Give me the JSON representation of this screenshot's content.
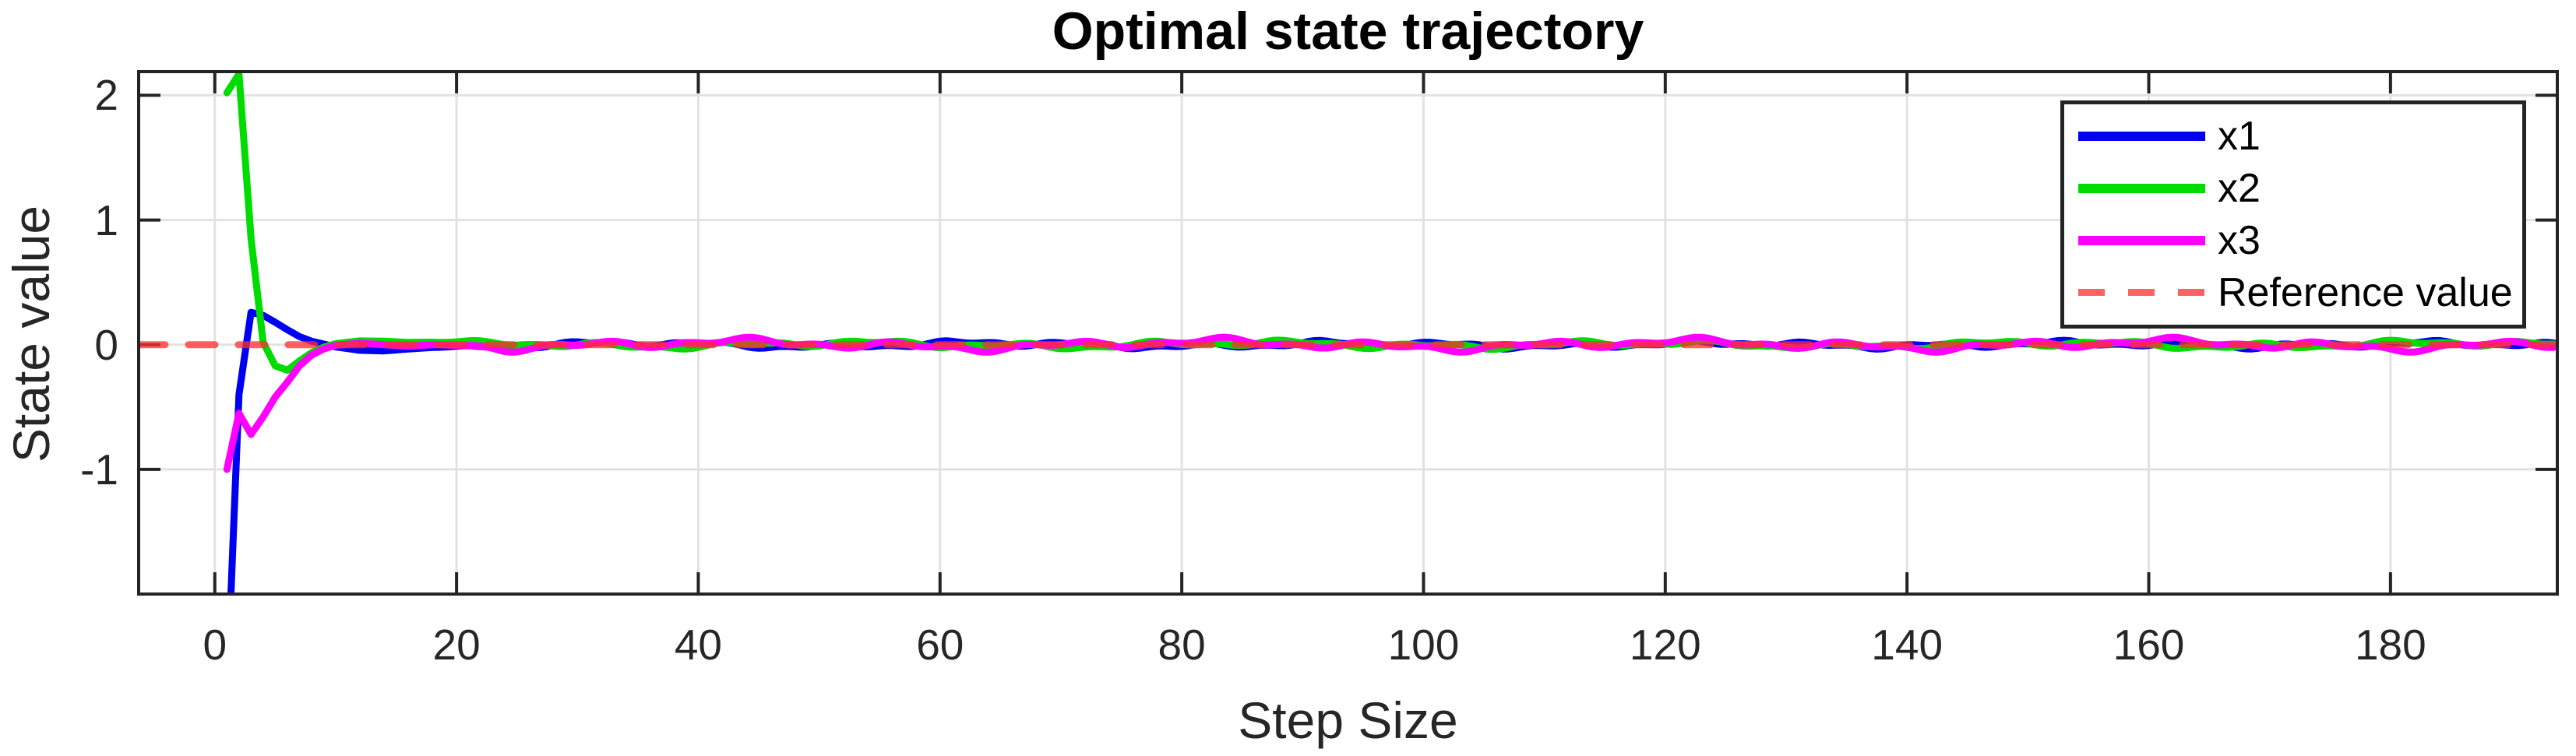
{
  "figure": {
    "background_color": "#ffffff"
  },
  "chart_data": {
    "type": "line",
    "title": "Optimal state trajectory",
    "xlabel": "Step Size",
    "ylabel": "State value",
    "xlim": [
      -6.3,
      193.8
    ],
    "ylim": [
      -2.0,
      2.19
    ],
    "x_ticks": [
      0,
      20,
      40,
      60,
      80,
      100,
      120,
      140,
      160,
      180
    ],
    "y_ticks": [
      -1,
      0,
      1,
      2
    ],
    "grid": true,
    "axis_color": "#242424",
    "grid_color": "#e2e2e2",
    "tick_label_color": "#262626",
    "legend_position": "top-right",
    "steady_state_range": [
      18,
      193.8
    ],
    "series": [
      {
        "name": "x1",
        "color": "#0000f0",
        "line_style": "solid",
        "points": [
          [
            1,
            -2.8
          ],
          [
            2,
            -0.4
          ],
          [
            3,
            0.26
          ],
          [
            4,
            0.235
          ],
          [
            5,
            0.18
          ],
          [
            6,
            0.12
          ],
          [
            7,
            0.065
          ],
          [
            8,
            0.028
          ],
          [
            9,
            0.005
          ],
          [
            10,
            -0.018
          ],
          [
            12,
            -0.045
          ],
          [
            14,
            -0.05
          ],
          [
            16,
            -0.035
          ],
          [
            18,
            -0.022
          ]
        ],
        "steady_oscillation": {
          "mean": 0,
          "amplitude": 0.028,
          "components": [
            [
              0.5,
              0.62,
              1.3
            ],
            [
              0.35,
              1.42,
              4.1
            ],
            [
              0.45,
              0.21,
              0.7
            ]
          ]
        }
      },
      {
        "name": "x2",
        "color": "#00dc00",
        "line_style": "solid",
        "points": [
          [
            1,
            2.02
          ],
          [
            2,
            2.17
          ],
          [
            3,
            0.85
          ],
          [
            4,
            0.02
          ],
          [
            5,
            -0.17
          ],
          [
            6,
            -0.205
          ],
          [
            7,
            -0.13
          ],
          [
            8,
            -0.065
          ],
          [
            9,
            -0.02
          ],
          [
            10,
            0.008
          ],
          [
            12,
            0.03
          ],
          [
            14,
            0.028
          ],
          [
            16,
            0.018
          ],
          [
            18,
            0.02
          ]
        ],
        "steady_oscillation": {
          "mean": 0,
          "amplitude": 0.032,
          "components": [
            [
              0.5,
              0.55,
              2.8
            ],
            [
              0.35,
              1.23,
              0.4
            ],
            [
              0.45,
              0.19,
              4.2
            ]
          ]
        }
      },
      {
        "name": "x3",
        "color": "#ff00ff",
        "line_style": "solid",
        "points": [
          [
            1,
            -1.0
          ],
          [
            2,
            -0.55
          ],
          [
            3,
            -0.72
          ],
          [
            4,
            -0.58
          ],
          [
            5,
            -0.42
          ],
          [
            6,
            -0.3
          ],
          [
            7,
            -0.17
          ],
          [
            8,
            -0.085
          ],
          [
            9,
            -0.035
          ],
          [
            10,
            -0.005
          ],
          [
            12,
            0.012
          ],
          [
            14,
            0.0
          ],
          [
            16,
            -0.012
          ],
          [
            18,
            0.0
          ]
        ],
        "steady_oscillation": {
          "mean": 0,
          "amplitude": 0.045,
          "components": [
            [
              0.5,
              0.48,
              5.6
            ],
            [
              0.35,
              1.12,
              2.2
            ],
            [
              0.5,
              0.16,
              1.0
            ]
          ]
        }
      },
      {
        "name": "Reference value",
        "color": "#ff2e2e",
        "opacity": 0.75,
        "line_style": "dashed",
        "dash_pattern": [
          34,
          30
        ],
        "constant_value": 0
      }
    ]
  }
}
